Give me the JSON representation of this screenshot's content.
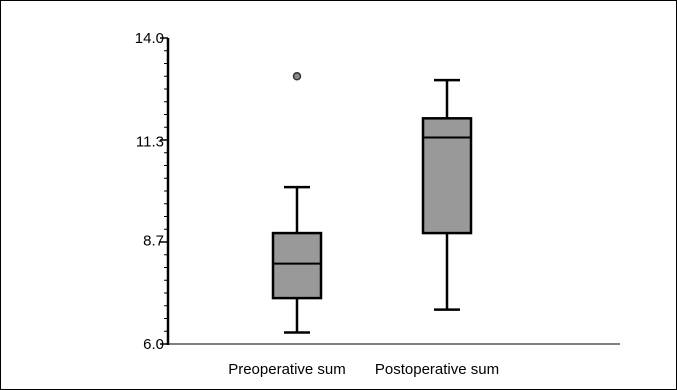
{
  "chart_data": {
    "type": "boxplot",
    "title": "",
    "xlabel": "",
    "ylabel": "",
    "ylim": [
      6.0,
      14.0
    ],
    "yticks": [
      {
        "value": 6.0,
        "label": "6.0"
      },
      {
        "value": 8.7,
        "label": "8.7"
      },
      {
        "value": 11.3,
        "label": "11.3"
      },
      {
        "value": 14.0,
        "label": "14.0"
      }
    ],
    "categories": [
      "Preoperative sum",
      "Postoperative sum"
    ],
    "boxes": [
      {
        "category": "Preoperative sum",
        "whisker_low": 6.3,
        "q1": 7.2,
        "median": 8.1,
        "q3": 8.9,
        "whisker_high": 10.1,
        "outliers": [
          13.0
        ]
      },
      {
        "category": "Postoperative sum",
        "whisker_low": 6.9,
        "q1": 8.9,
        "median": 11.4,
        "q3": 11.9,
        "whisker_high": 12.9,
        "outliers": []
      }
    ],
    "colors": {
      "box_fill": "#999999",
      "stroke": "#000000",
      "outlier_fill": "#8a8a8a"
    },
    "grid": false,
    "legend": "none"
  }
}
